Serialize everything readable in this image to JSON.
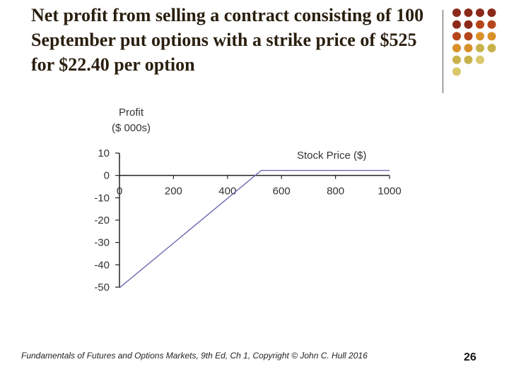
{
  "slide": {
    "title": "Net profit from selling a contract consisting of 100 September put options with a strike price of $525 for $22.40 per option",
    "footer": "Fundamentals of Futures and Options Markets, 9th Ed, Ch 1, Copyright © John C. Hull 2016",
    "page_number": "26"
  },
  "theme": {
    "dot_colors": [
      "#8b2a1a",
      "#b5451b",
      "#d9902a",
      "#c8b24a",
      "#d9c86a"
    ],
    "line_color": "#6a6ab0",
    "axis_color": "#222222"
  },
  "chart_data": {
    "type": "line",
    "ylabel": [
      "Profit",
      "($ 000s)"
    ],
    "xlabel": "Stock Price ($)",
    "xlim": [
      0,
      1000
    ],
    "ylim": [
      -50,
      10
    ],
    "x_ticks": [
      "0",
      "200",
      "400",
      "600",
      "800",
      "1000"
    ],
    "y_ticks": [
      "10",
      "0",
      "-10",
      "-20",
      "-30",
      "-40",
      "-50"
    ],
    "x_tick_values": [
      0,
      200,
      400,
      600,
      800,
      1000
    ],
    "y_tick_values": [
      10,
      0,
      -10,
      -20,
      -30,
      -40,
      -50
    ],
    "grid": false,
    "series": [
      {
        "x": [
          0,
          525,
          1000
        ],
        "y": [
          -50.3,
          2.24,
          2.24
        ]
      }
    ]
  }
}
